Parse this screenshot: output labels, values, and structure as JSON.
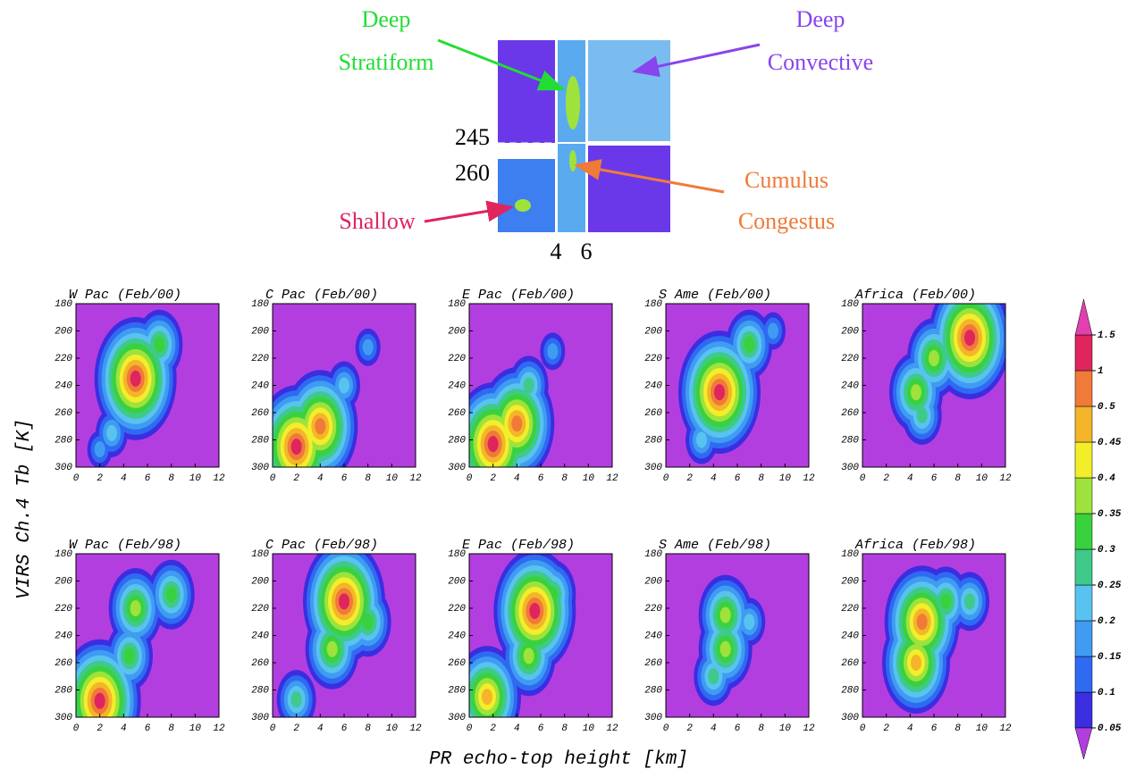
{
  "schematic": {
    "deep_stratiform": [
      "Deep",
      "Stratiform"
    ],
    "deep_convective": [
      "Deep",
      "Convective"
    ],
    "shallow": "Shallow",
    "cumulus_congestus": [
      "Cumulus",
      "Congestus"
    ],
    "tb_marks": [
      "245",
      "260"
    ],
    "height_marks": [
      "4",
      "6"
    ]
  },
  "ylabel": "VIRS Ch.4 Tb [K]",
  "xlabel": "PR echo-top height [km]",
  "colorbar": {
    "levels": [
      0.05,
      0.1,
      0.15,
      0.2,
      0.25,
      0.3,
      0.35,
      0.4,
      0.45,
      0.5,
      1,
      1.5
    ],
    "colors": [
      "#3a2ee0",
      "#2f6af2",
      "#3f9cf2",
      "#58c3f0",
      "#3fc98a",
      "#39d23e",
      "#9fe23c",
      "#f2ee2a",
      "#f4b52a",
      "#f07a38",
      "#e0245e"
    ],
    "under_color": "#b33ee0",
    "over_color": "#e040b0"
  },
  "chart_data": [
    {
      "type": "contour",
      "title": "W Pac (Feb/00)",
      "xlim": [
        0,
        12
      ],
      "ylim": [
        300,
        180
      ],
      "xticks": [
        0,
        2,
        4,
        6,
        8,
        10,
        12
      ],
      "yticks": [
        180,
        200,
        220,
        240,
        260,
        280,
        300
      ],
      "peaks": [
        {
          "x": 5,
          "y": 235,
          "level": 1
        },
        {
          "x": 7,
          "y": 210,
          "level": 0.3
        },
        {
          "x": 3,
          "y": 275,
          "level": 0.2
        },
        {
          "x": 2,
          "y": 287,
          "level": 0.15
        }
      ]
    },
    {
      "type": "contour",
      "title": "C Pac (Feb/00)",
      "xlim": [
        0,
        12
      ],
      "ylim": [
        300,
        180
      ],
      "xticks": [
        0,
        2,
        4,
        6,
        8,
        10,
        12
      ],
      "yticks": [
        180,
        200,
        220,
        240,
        260,
        280,
        300
      ],
      "peaks": [
        {
          "x": 2,
          "y": 285,
          "level": 1.5
        },
        {
          "x": 4,
          "y": 270,
          "level": 0.5
        },
        {
          "x": 6,
          "y": 240,
          "level": 0.2
        },
        {
          "x": 8,
          "y": 212,
          "level": 0.15
        }
      ]
    },
    {
      "type": "contour",
      "title": "E Pac (Feb/00)",
      "xlim": [
        0,
        12
      ],
      "ylim": [
        300,
        180
      ],
      "xticks": [
        0,
        2,
        4,
        6,
        8,
        10,
        12
      ],
      "yticks": [
        180,
        200,
        220,
        240,
        260,
        280,
        300
      ],
      "peaks": [
        {
          "x": 2,
          "y": 283,
          "level": 1.5
        },
        {
          "x": 4,
          "y": 268,
          "level": 0.5
        },
        {
          "x": 5,
          "y": 240,
          "level": 0.25
        },
        {
          "x": 7,
          "y": 215,
          "level": 0.15
        }
      ]
    },
    {
      "type": "contour",
      "title": "S Ame (Feb/00)",
      "xlim": [
        0,
        12
      ],
      "ylim": [
        300,
        180
      ],
      "xticks": [
        0,
        2,
        4,
        6,
        8,
        10,
        12
      ],
      "yticks": [
        180,
        200,
        220,
        240,
        260,
        280,
        300
      ],
      "peaks": [
        {
          "x": 4.5,
          "y": 245,
          "level": 1
        },
        {
          "x": 7,
          "y": 210,
          "level": 0.3
        },
        {
          "x": 3,
          "y": 280,
          "level": 0.2
        },
        {
          "x": 9,
          "y": 200,
          "level": 0.15
        }
      ]
    },
    {
      "type": "contour",
      "title": "Africa (Feb/00)",
      "xlim": [
        0,
        12
      ],
      "ylim": [
        300,
        180
      ],
      "xticks": [
        0,
        2,
        4,
        6,
        8,
        10,
        12
      ],
      "yticks": [
        180,
        200,
        220,
        240,
        260,
        280,
        300
      ],
      "peaks": [
        {
          "x": 9,
          "y": 205,
          "level": 1
        },
        {
          "x": 6,
          "y": 220,
          "level": 0.35
        },
        {
          "x": 4.5,
          "y": 245,
          "level": 0.35
        },
        {
          "x": 5,
          "y": 262,
          "level": 0.25
        }
      ]
    },
    {
      "type": "contour",
      "title": "W Pac (Feb/98)",
      "xlim": [
        0,
        12
      ],
      "ylim": [
        300,
        180
      ],
      "xticks": [
        0,
        2,
        4,
        6,
        8,
        10,
        12
      ],
      "yticks": [
        180,
        200,
        220,
        240,
        260,
        280,
        300
      ],
      "peaks": [
        {
          "x": 2,
          "y": 288,
          "level": 1
        },
        {
          "x": 5,
          "y": 220,
          "level": 0.35
        },
        {
          "x": 4.5,
          "y": 255,
          "level": 0.3
        },
        {
          "x": 8,
          "y": 210,
          "level": 0.3
        }
      ]
    },
    {
      "type": "contour",
      "title": "C Pac (Feb/98)",
      "xlim": [
        0,
        12
      ],
      "ylim": [
        300,
        180
      ],
      "xticks": [
        0,
        2,
        4,
        6,
        8,
        10,
        12
      ],
      "yticks": [
        180,
        200,
        220,
        240,
        260,
        280,
        300
      ],
      "peaks": [
        {
          "x": 6,
          "y": 215,
          "level": 1
        },
        {
          "x": 5,
          "y": 250,
          "level": 0.35
        },
        {
          "x": 8,
          "y": 230,
          "level": 0.3
        },
        {
          "x": 2,
          "y": 287,
          "level": 0.25
        }
      ]
    },
    {
      "type": "contour",
      "title": "E Pac (Feb/98)",
      "xlim": [
        0,
        12
      ],
      "ylim": [
        300,
        180
      ],
      "xticks": [
        0,
        2,
        4,
        6,
        8,
        10,
        12
      ],
      "yticks": [
        180,
        200,
        220,
        240,
        260,
        280,
        300
      ],
      "peaks": [
        {
          "x": 5.5,
          "y": 222,
          "level": 1
        },
        {
          "x": 5,
          "y": 255,
          "level": 0.35
        },
        {
          "x": 7,
          "y": 210,
          "level": 0.3
        },
        {
          "x": 1.5,
          "y": 285,
          "level": 0.45
        }
      ]
    },
    {
      "type": "contour",
      "title": "S Ame (Feb/98)",
      "xlim": [
        0,
        12
      ],
      "ylim": [
        300,
        180
      ],
      "xticks": [
        0,
        2,
        4,
        6,
        8,
        10,
        12
      ],
      "yticks": [
        180,
        200,
        220,
        240,
        260,
        280,
        300
      ],
      "peaks": [
        {
          "x": 5,
          "y": 225,
          "level": 0.35
        },
        {
          "x": 5,
          "y": 250,
          "level": 0.35
        },
        {
          "x": 4,
          "y": 270,
          "level": 0.25
        },
        {
          "x": 7,
          "y": 230,
          "level": 0.2
        }
      ]
    },
    {
      "type": "contour",
      "title": "Africa (Feb/98)",
      "xlim": [
        0,
        12
      ],
      "ylim": [
        300,
        180
      ],
      "xticks": [
        0,
        2,
        4,
        6,
        8,
        10,
        12
      ],
      "yticks": [
        180,
        200,
        220,
        240,
        260,
        280,
        300
      ],
      "peaks": [
        {
          "x": 5,
          "y": 230,
          "level": 0.5
        },
        {
          "x": 7,
          "y": 215,
          "level": 0.3
        },
        {
          "x": 4.5,
          "y": 260,
          "level": 0.45
        },
        {
          "x": 9,
          "y": 215,
          "level": 0.25
        }
      ]
    }
  ]
}
